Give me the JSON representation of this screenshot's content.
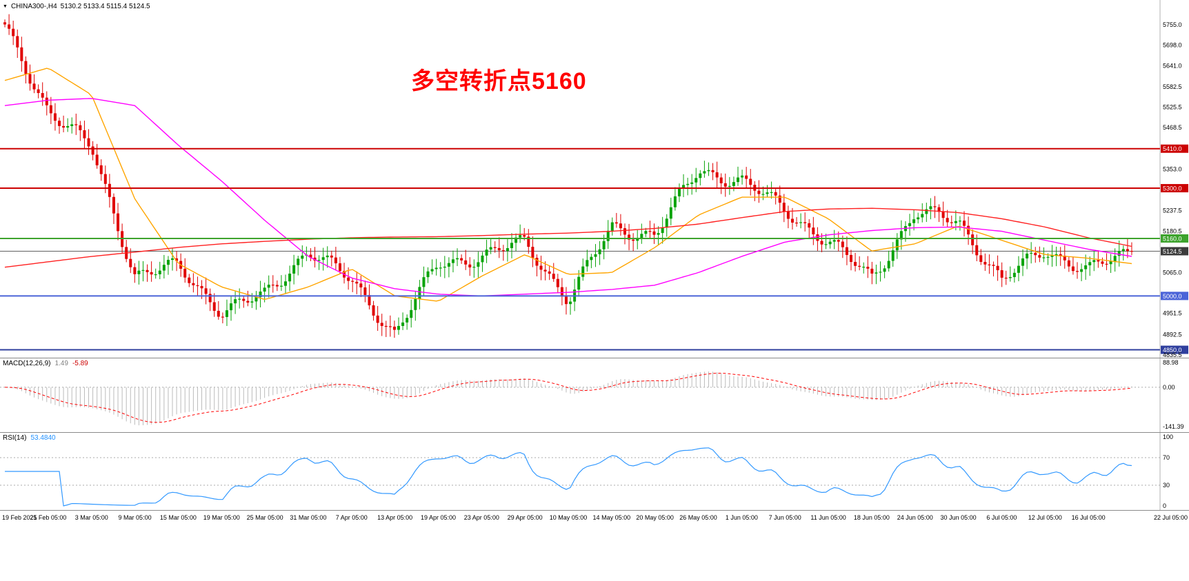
{
  "header": {
    "dropdown_icon": "▼",
    "symbol": "CHINA300-,H4",
    "ohlc": "5130.2 5133.4 5115.4 5124.5"
  },
  "annotation": {
    "text": "多空转折点5160",
    "color": "#FF0000"
  },
  "colors": {
    "bull": "#09A309",
    "bear": "#E00000",
    "last_price_line": "#606060",
    "last_price_badge": "#3C3C3C",
    "macd_hist": "#BBBBBB",
    "macd_signal": "#FF0000",
    "rsi_line": "#3399FF",
    "level_dotted": "#AAAAAA",
    "axis_separator": "#B0B0B0"
  },
  "chart_data": [
    {
      "type": "candlestick",
      "title": "CHINA300-,H4",
      "timeframe": "H4",
      "x_labels": [
        "19 Feb 2021",
        "25 Feb 05:00",
        "3 Mar 05:00",
        "9 Mar 05:00",
        "15 Mar 05:00",
        "19 Mar 05:00",
        "25 Mar 05:00",
        "31 Mar 05:00",
        "7 Apr 05:00",
        "13 Apr 05:00",
        "19 Apr 05:00",
        "23 Apr 05:00",
        "29 Apr 05:00",
        "10 May 05:00",
        "14 May 05:00",
        "20 May 05:00",
        "26 May 05:00",
        "1 Jun 05:00",
        "7 Jun 05:00",
        "11 Jun 05:00",
        "18 Jun 05:00",
        "24 Jun 05:00",
        "30 Jun 05:00",
        "6 Jul 05:00",
        "12 Jul 05:00",
        "16 Jul 05:00",
        "22 Jul 05:00"
      ],
      "price_range": [
        4828,
        5824
      ],
      "candle_count": 270,
      "last_price": 5124.5,
      "close_keypoints": [
        5745,
        5520,
        5410,
        5060,
        5080,
        4960,
        5000,
        5130,
        5040,
        4895,
        5090,
        5110,
        5150,
        4990,
        5190,
        5170,
        5350,
        5320,
        5240,
        5150,
        5050,
        5230,
        5210,
        5040,
        5130,
        5070,
        5124.5
      ],
      "moving_averages": [
        {
          "name": "ma-fast-orange",
          "color": "#FFA500",
          "values": [
            5600,
            5635,
            5560,
            5270,
            5090,
            5025,
            4990,
            5025,
            5075,
            5000,
            4985,
            5055,
            5115,
            5060,
            5065,
            5135,
            5225,
            5275,
            5275,
            5215,
            5125,
            5145,
            5195,
            5155,
            5115,
            5105,
            5090
          ]
        },
        {
          "name": "ma-mid-magenta",
          "color": "#FF00FF",
          "values": [
            5530,
            5545,
            5550,
            5530,
            5420,
            5320,
            5210,
            5110,
            5050,
            5020,
            5005,
            5000,
            5005,
            5010,
            5018,
            5030,
            5065,
            5110,
            5150,
            5170,
            5182,
            5190,
            5192,
            5180,
            5155,
            5130,
            5110
          ]
        },
        {
          "name": "ma-slow-red",
          "color": "#FF2020",
          "values": [
            5080,
            5095,
            5110,
            5122,
            5135,
            5145,
            5152,
            5158,
            5162,
            5164,
            5165,
            5168,
            5172,
            5175,
            5180,
            5188,
            5200,
            5218,
            5235,
            5242,
            5244,
            5240,
            5232,
            5215,
            5192,
            5162,
            5138
          ]
        }
      ],
      "horizontal_lines": [
        {
          "label": "5410.0",
          "price": 5410.0,
          "color": "#CC0000",
          "width": 2
        },
        {
          "label": "5300.0",
          "price": 5300.0,
          "color": "#CC0000",
          "width": 2
        },
        {
          "label": "5160.0",
          "price": 5160.0,
          "color": "#3DA32D",
          "width": 2
        },
        {
          "label": "5000.0",
          "price": 5000.0,
          "color": "#4A63D8",
          "width": 2
        },
        {
          "label": "4850.0",
          "price": 4850.0,
          "color": "#2F3F9E",
          "width": 2
        }
      ],
      "axis_labels": [
        5755.0,
        5698.0,
        5641.0,
        5582.5,
        5525.5,
        5468.5,
        5353.0,
        5237.5,
        5180.5,
        5065.0,
        4951.5,
        4892.5,
        4835.5
      ],
      "render": {
        "wiggle": [
          16,
          0.83,
          12,
          0.31,
          2
        ],
        "wick_base": 8,
        "wick_amp": 22,
        "clamp_high": 5788,
        "clamp_low": 4844
      }
    },
    {
      "type": "macd",
      "label": "MACD(12,26,9)",
      "value_main": "1.49",
      "value_signal": "-5.89",
      "params": [
        12,
        26,
        9
      ],
      "range": [
        -141.39,
        88.98
      ],
      "axis_labels": [
        {
          "text": "88.98",
          "value": 88.98
        },
        {
          "text": "0.00",
          "value": 0
        },
        {
          "text": "-141.39",
          "value": -141.39
        }
      ]
    },
    {
      "type": "rsi",
      "label": "RSI(14)",
      "value": "53.4840",
      "period": 14,
      "levels": [
        70,
        30
      ],
      "range": [
        0,
        100
      ],
      "axis_labels": [
        {
          "text": "100",
          "value": 100
        },
        {
          "text": "70",
          "value": 70
        },
        {
          "text": "30",
          "value": 30
        },
        {
          "text": "0",
          "value": 0
        }
      ]
    }
  ]
}
